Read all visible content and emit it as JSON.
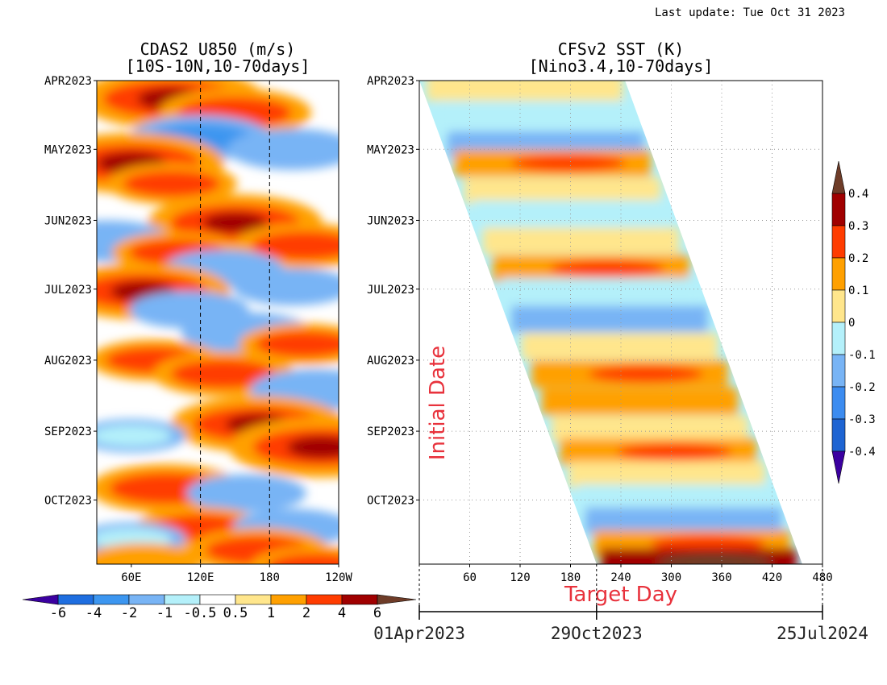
{
  "header": {
    "last_update": "Last update: Tue Oct 31 2023"
  },
  "palette": {
    "u850": [
      "#3b00a0",
      "#1e6ee0",
      "#3c96f0",
      "#78b4f5",
      "#b4f0fa",
      "#ffffff",
      "#ffe68c",
      "#ffa000",
      "#ff3c00",
      "#a00000",
      "#6e3c28"
    ],
    "sst": [
      "#3b00a0",
      "#1e64d2",
      "#3c8cf0",
      "#78b4f5",
      "#b4f0fa",
      "#ffe68c",
      "#ffa000",
      "#ff3c00",
      "#a00000",
      "#6e3c28"
    ]
  },
  "chart_data": [
    {
      "type": "heatmap",
      "title": "CDAS2 U850 (m/s)",
      "subtitle": "[10S-10N,10-70days]",
      "x_tick_labels": [
        "60E",
        "120E",
        "180",
        "120W"
      ],
      "x_ticks_deg": [
        60,
        120,
        180,
        240
      ],
      "x_range_deg": [
        30,
        240
      ],
      "y_tick_labels": [
        "APR2023",
        "MAY2023",
        "JUN2023",
        "JUL2023",
        "AUG2023",
        "SEP2023",
        "OCT2023"
      ],
      "y_range": [
        "2023-04-01",
        "2023-10-29"
      ],
      "dashed_lines_deg": [
        120,
        180
      ],
      "colorbar": {
        "orientation": "horizontal",
        "labels": [
          "-6",
          "-4",
          "-2",
          "-1",
          "-0.5",
          "0.5",
          "1",
          "2",
          "4",
          "6"
        ],
        "levels": [
          -6,
          -4,
          -2,
          -1,
          -0.5,
          0.5,
          1,
          2,
          4,
          6
        ]
      },
      "anomalies": [
        {
          "lon": 95,
          "day": 8,
          "value": 4.5
        },
        {
          "lon": 150,
          "day": 14,
          "value": 3
        },
        {
          "lon": 120,
          "day": 25,
          "value": -2.5
        },
        {
          "lon": 200,
          "day": 30,
          "value": -2
        },
        {
          "lon": 60,
          "day": 36,
          "value": 4.5
        },
        {
          "lon": 95,
          "day": 45,
          "value": 2
        },
        {
          "lon": 150,
          "day": 62,
          "value": 4
        },
        {
          "lon": 210,
          "day": 72,
          "value": 2.5
        },
        {
          "lon": 40,
          "day": 70,
          "value": -2
        },
        {
          "lon": 100,
          "day": 75,
          "value": 2
        },
        {
          "lon": 140,
          "day": 82,
          "value": -1.5
        },
        {
          "lon": 200,
          "day": 90,
          "value": -1.5
        },
        {
          "lon": 70,
          "day": 92,
          "value": 4
        },
        {
          "lon": 110,
          "day": 100,
          "value": -1.5
        },
        {
          "lon": 160,
          "day": 110,
          "value": -2
        },
        {
          "lon": 210,
          "day": 115,
          "value": 2
        },
        {
          "lon": 80,
          "day": 122,
          "value": 2
        },
        {
          "lon": 140,
          "day": 128,
          "value": 2.5
        },
        {
          "lon": 220,
          "day": 135,
          "value": -2
        },
        {
          "lon": 170,
          "day": 150,
          "value": 4
        },
        {
          "lon": 225,
          "day": 160,
          "value": 4.5
        },
        {
          "lon": 60,
          "day": 155,
          "value": -1
        },
        {
          "lon": 90,
          "day": 178,
          "value": 3
        },
        {
          "lon": 160,
          "day": 180,
          "value": -1.5
        },
        {
          "lon": 120,
          "day": 195,
          "value": 2
        },
        {
          "lon": 200,
          "day": 195,
          "value": -1.5
        },
        {
          "lon": 60,
          "day": 200,
          "value": -1
        },
        {
          "lon": 170,
          "day": 205,
          "value": 2.5
        },
        {
          "lon": 220,
          "day": 212,
          "value": 2
        },
        {
          "lon": 70,
          "day": 210,
          "value": 1.5
        }
      ]
    },
    {
      "type": "heatmap",
      "title": "CFSv2 SST (K)",
      "subtitle": "[Nino3.4,10-70days]",
      "ylabel": "Initial Date",
      "xlabel": "Target Day",
      "x_tick_labels": [
        "60",
        "120",
        "180",
        "240",
        "300",
        "360",
        "420",
        "480"
      ],
      "x_range": [
        0,
        480
      ],
      "y_tick_labels": [
        "APR2023",
        "MAY2023",
        "JUN2023",
        "JUL2023",
        "AUG2023",
        "SEP2023",
        "OCT2023"
      ],
      "y_range": [
        "2023-04-01",
        "2023-10-29"
      ],
      "lead_days": 45,
      "band_width_days": 245,
      "date_axis_labels": [
        "01Apr2023",
        "29Oct2023",
        "25Jul2024"
      ],
      "colorbar": {
        "orientation": "vertical",
        "labels": [
          "0.4",
          "0.3",
          "0.2",
          "0.1",
          "0",
          "-0.1",
          "-0.2",
          "-0.3",
          "-0.4"
        ],
        "levels": [
          0.4,
          0.3,
          0.2,
          0.1,
          0,
          -0.1,
          -0.2,
          -0.3,
          -0.4
        ]
      },
      "row_values": [
        {
          "day": 3,
          "value": 0.05
        },
        {
          "day": 15,
          "value": -0.05
        },
        {
          "day": 28,
          "value": -0.15
        },
        {
          "day": 36,
          "value": 0.15
        },
        {
          "day": 48,
          "value": 0.05
        },
        {
          "day": 58,
          "value": -0.05
        },
        {
          "day": 70,
          "value": 0.05
        },
        {
          "day": 82,
          "value": 0.15
        },
        {
          "day": 92,
          "value": -0.05
        },
        {
          "day": 104,
          "value": -0.15
        },
        {
          "day": 116,
          "value": 0.05
        },
        {
          "day": 128,
          "value": 0.15
        },
        {
          "day": 140,
          "value": 0.1
        },
        {
          "day": 152,
          "value": 0.05
        },
        {
          "day": 162,
          "value": 0.15
        },
        {
          "day": 172,
          "value": 0.05
        },
        {
          "day": 182,
          "value": -0.05
        },
        {
          "day": 192,
          "value": -0.15
        },
        {
          "day": 202,
          "value": 0.15
        },
        {
          "day": 210,
          "value": 0.3
        }
      ]
    }
  ]
}
